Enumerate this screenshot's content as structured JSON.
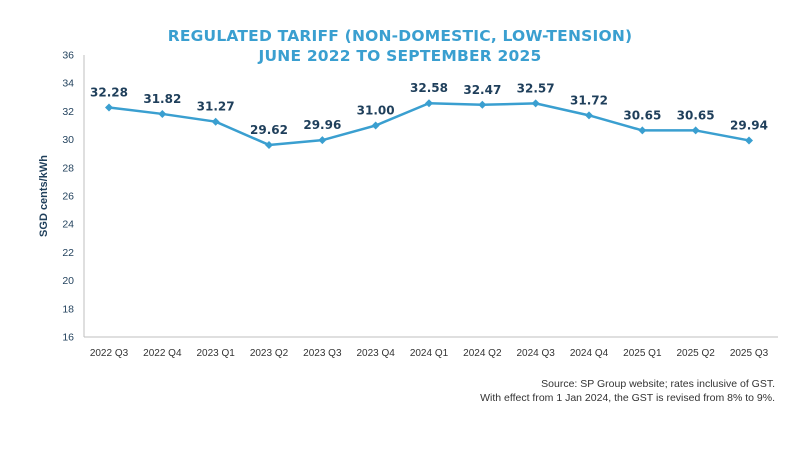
{
  "chart_data": {
    "type": "line",
    "title": [
      "REGULATED TARIFF (NON-DOMESTIC, LOW-TENSION)",
      "JUNE 2022 TO SEPTEMBER 2025"
    ],
    "ylabel": "SGD cents/kWh",
    "xlabel": "",
    "ylim": [
      16,
      36
    ],
    "yticks": [
      16,
      18,
      20,
      22,
      24,
      26,
      28,
      30,
      32,
      34,
      36
    ],
    "categories": [
      "2022 Q3",
      "2022 Q4",
      "2023 Q1",
      "2023 Q2",
      "2023 Q3",
      "2023 Q4",
      "2024 Q1",
      "2024 Q2",
      "2024 Q3",
      "2024 Q4",
      "2025 Q1",
      "2025 Q2",
      "2025 Q3"
    ],
    "values": [
      32.28,
      31.82,
      31.27,
      29.62,
      29.96,
      31.0,
      32.58,
      32.47,
      32.57,
      31.72,
      30.65,
      30.65,
      29.94
    ],
    "data_labels": [
      "32.28",
      "31.82",
      "31.27",
      "29.62",
      "29.96",
      "31.00",
      "32.58",
      "32.47",
      "32.57",
      "31.72",
      "30.65",
      "30.65",
      "29.94"
    ],
    "grid": false,
    "legend": "none"
  },
  "notes": [
    "Source: SP Group website; rates inclusive of GST.",
    "With effect from 1 Jan 2024, the GST is revised from 8% to 9%."
  ],
  "colors": {
    "title": "#3a9fd0",
    "line": "#3a9fd0",
    "marker": "#3a9fd0",
    "labels": "#1f3f5b",
    "axis_text": "#1f3f5b",
    "axis_line": "#bfbfbf"
  }
}
